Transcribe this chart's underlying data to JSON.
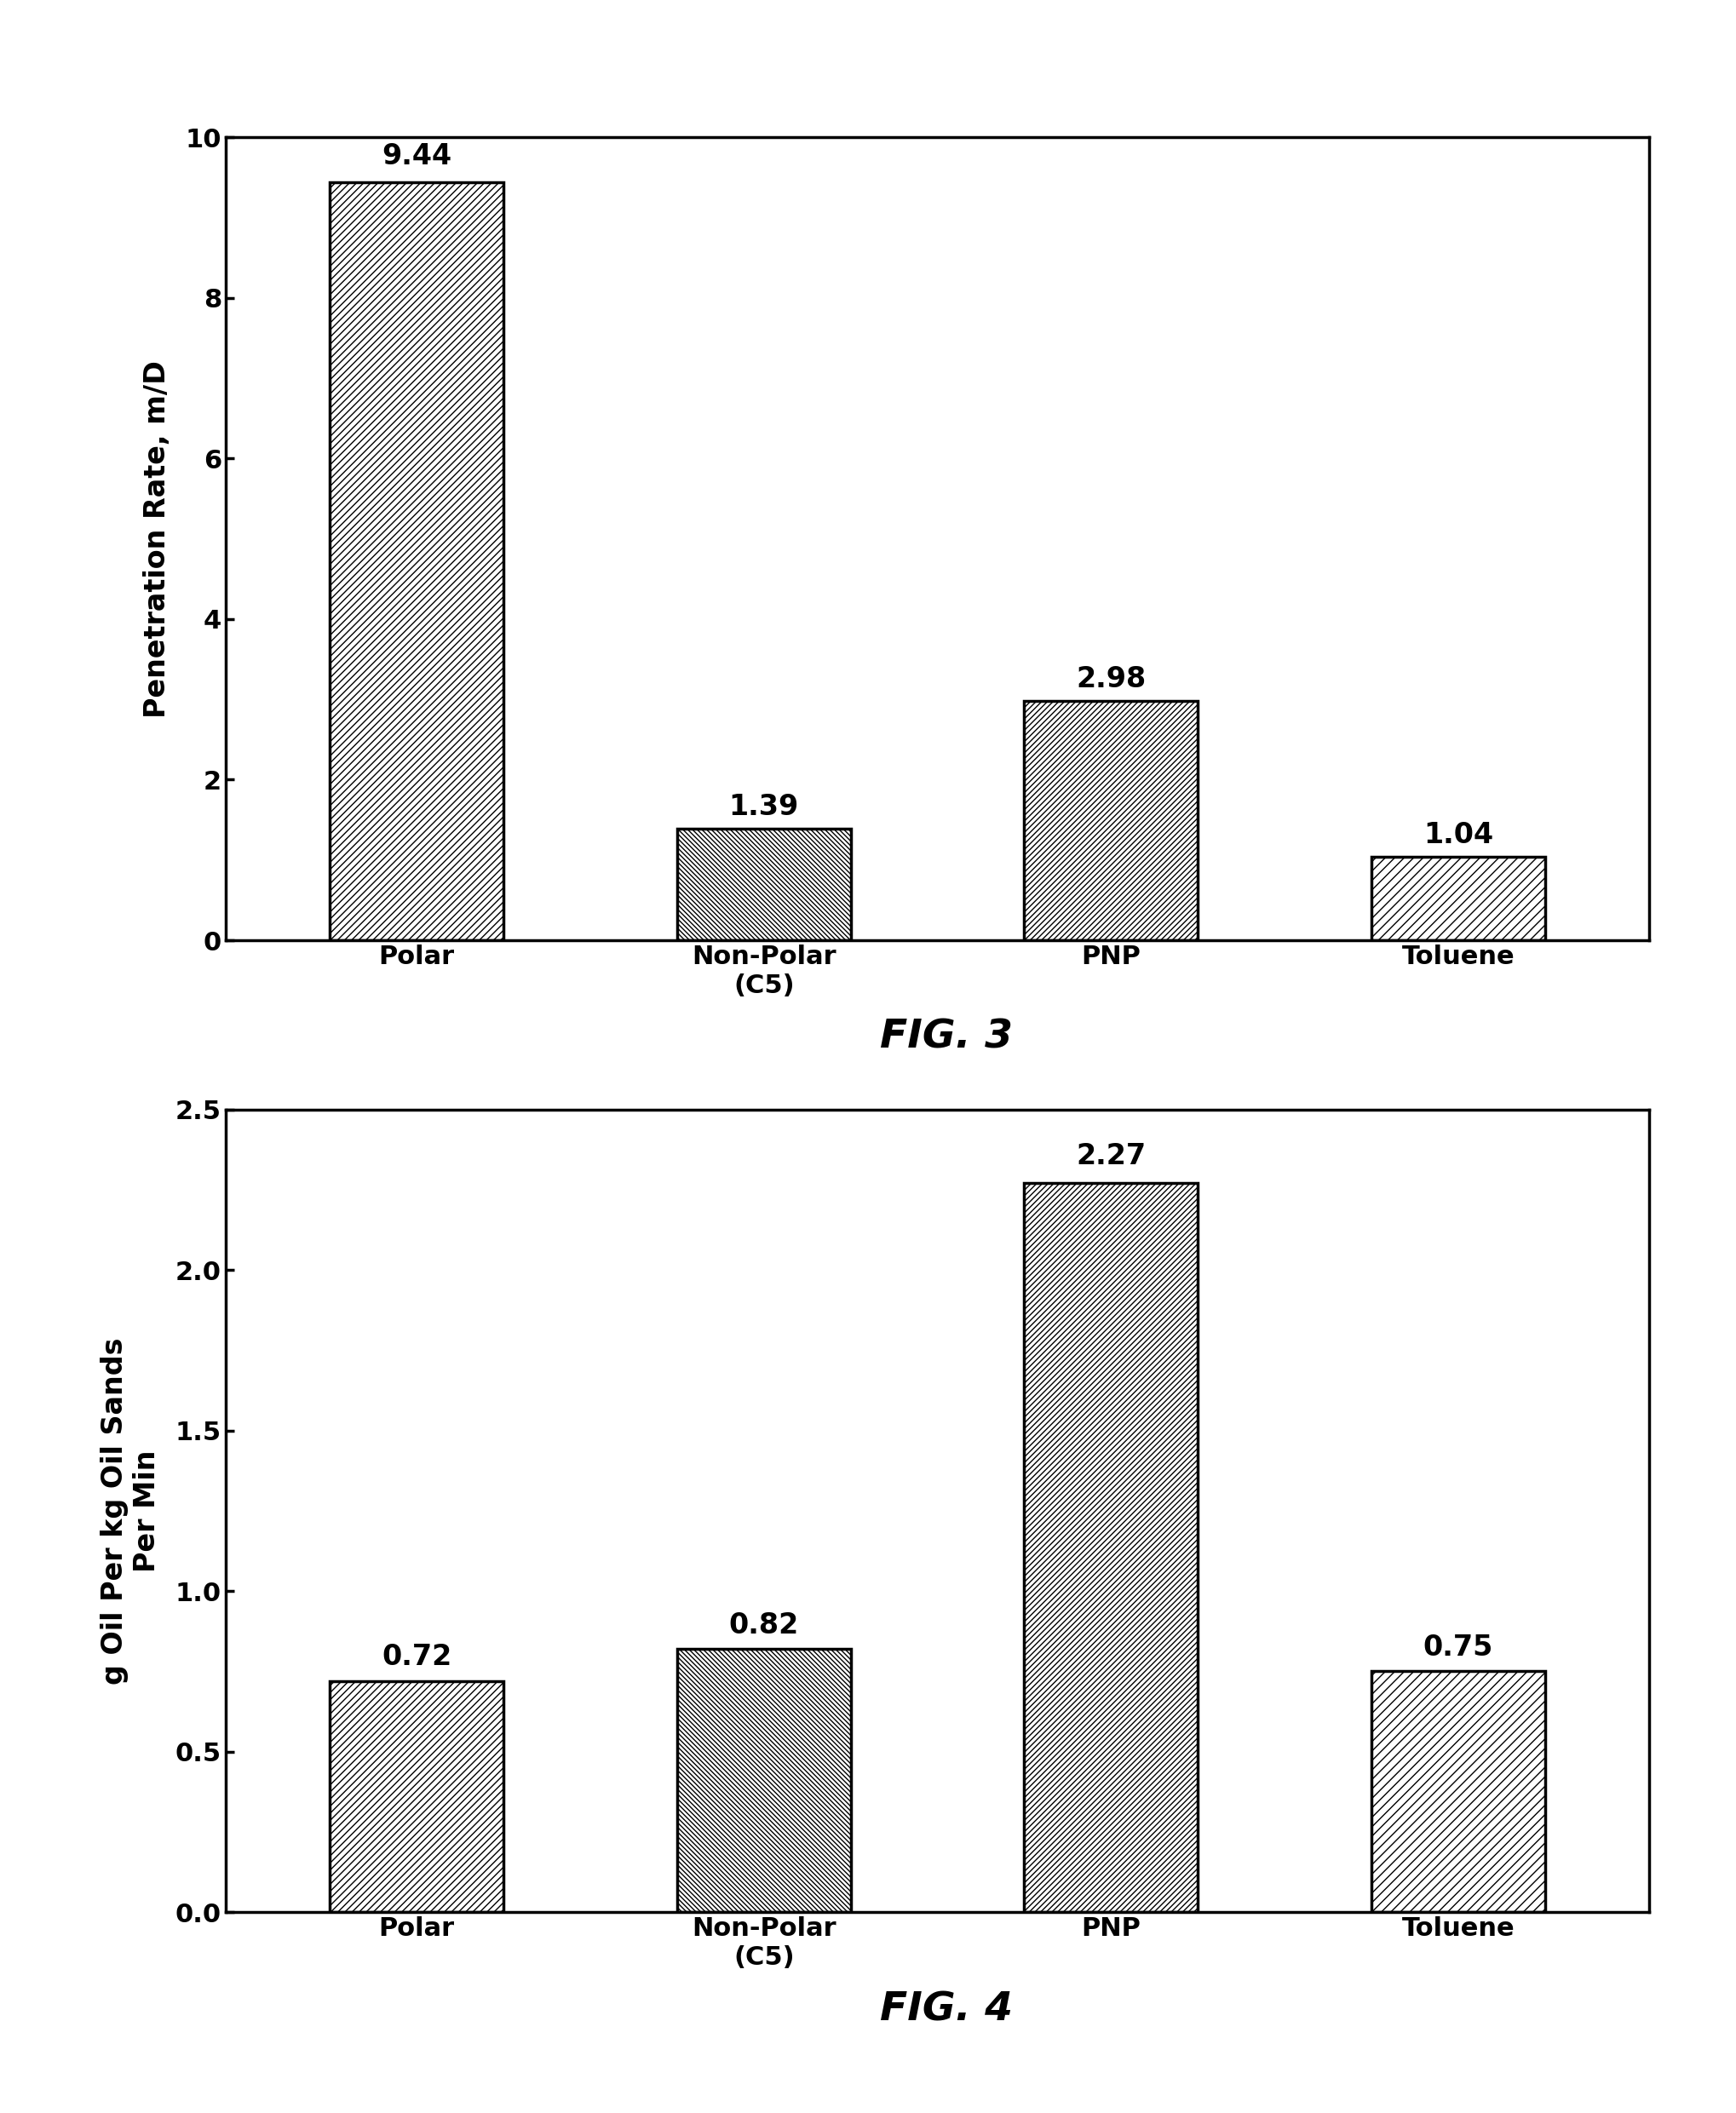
{
  "fig1": {
    "categories": [
      "Polar",
      "Non-Polar\n(C5)",
      "PNP",
      "Toluene"
    ],
    "values": [
      9.44,
      1.39,
      2.98,
      1.04
    ],
    "ylabel": "Penetration Rate, m/D",
    "ylim": [
      0,
      10
    ],
    "yticks": [
      0,
      2,
      4,
      6,
      8,
      10
    ],
    "ytick_labels": [
      "0",
      "2",
      "4",
      "6",
      "8",
      "10"
    ],
    "caption": "FIG. 3",
    "hatches": [
      "////",
      "\\\\\\\\\\\\",
      "/////",
      "///"
    ],
    "value_offsets": [
      0.15,
      0.1,
      0.1,
      0.1
    ]
  },
  "fig2": {
    "categories": [
      "Polar",
      "Non-Polar\n(C5)",
      "PNP",
      "Toluene"
    ],
    "values": [
      0.72,
      0.82,
      2.27,
      0.75
    ],
    "ylabel": "g Oil Per kg Oil Sands\nPer Min",
    "ylim": [
      0,
      2.5
    ],
    "yticks": [
      0.0,
      0.5,
      1.0,
      1.5,
      2.0,
      2.5
    ],
    "ytick_labels": [
      "0.0",
      "0.5",
      "1.0",
      "1.5",
      "2.0",
      "2.5"
    ],
    "caption": "FIG. 4",
    "hatches": [
      "////",
      "\\\\\\\\\\\\",
      "/////",
      "///"
    ],
    "value_offsets": [
      0.03,
      0.03,
      0.04,
      0.03
    ]
  },
  "bar_color": "#ffffff",
  "bar_edgecolor": "#000000",
  "background_color": "#ffffff",
  "label_fontsize": 24,
  "tick_fontsize": 22,
  "value_fontsize": 24,
  "caption_fontsize": 34,
  "bar_width": 0.5,
  "linewidth": 2.5
}
